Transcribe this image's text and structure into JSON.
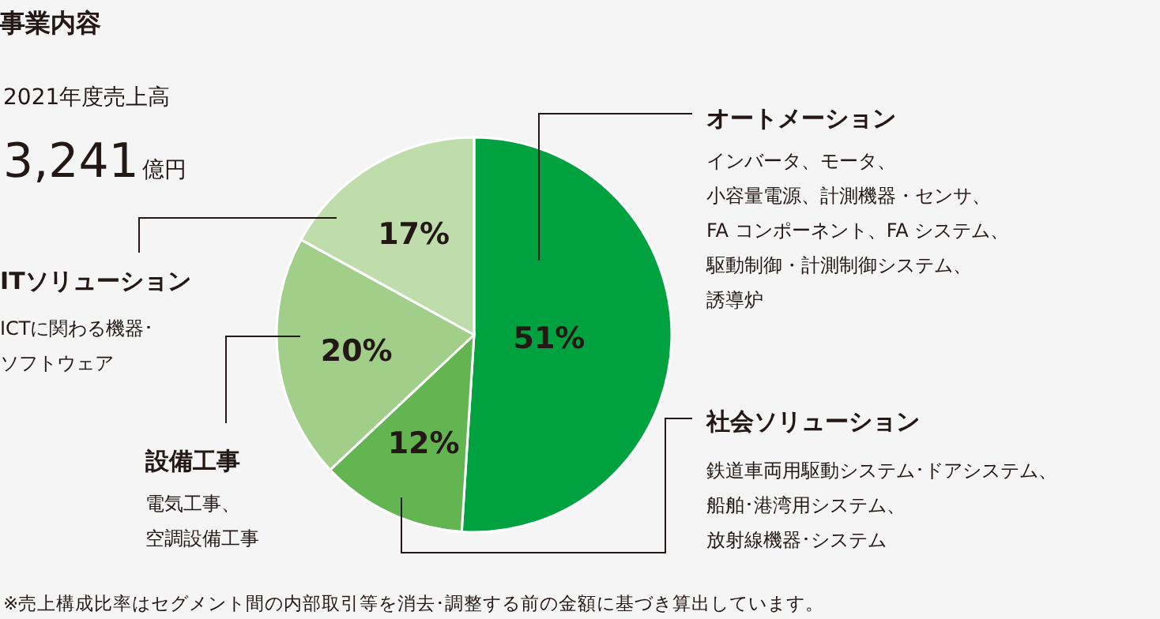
{
  "chart_data": {
    "type": "pie",
    "title": "事業内容",
    "subtitle": "2021年度売上高",
    "categories": [
      "オートメーション",
      "社会ソリューション",
      "設備工事",
      "ITソリューション"
    ],
    "values": [
      51,
      12,
      20,
      17
    ],
    "value_labels": [
      "51%",
      "12%",
      "20%",
      "17%"
    ],
    "colors": [
      "#00a23f",
      "#63b551",
      "#a1cf89",
      "#bfddab"
    ],
    "annotations": [
      "3,241億円",
      "インバータ、モータ、",
      "小容量電源、計測機器・センサ、",
      "FA コンポーネント、FA システム、",
      "駆動制御・計測制御システム、",
      "誘導炉",
      "鉄道車両用駆動システム･ドアシステム、",
      "船舶･港湾用システム、",
      "放射線機器･システム",
      "電気工事、",
      "空調設備工事",
      "ICTに関わる機器･",
      "ソフトウェア",
      "※売上構成比率はセグメント間の内部取引等を消去･調整する前の金額に基づき算出しています。"
    ],
    "legend": false
  }
}
